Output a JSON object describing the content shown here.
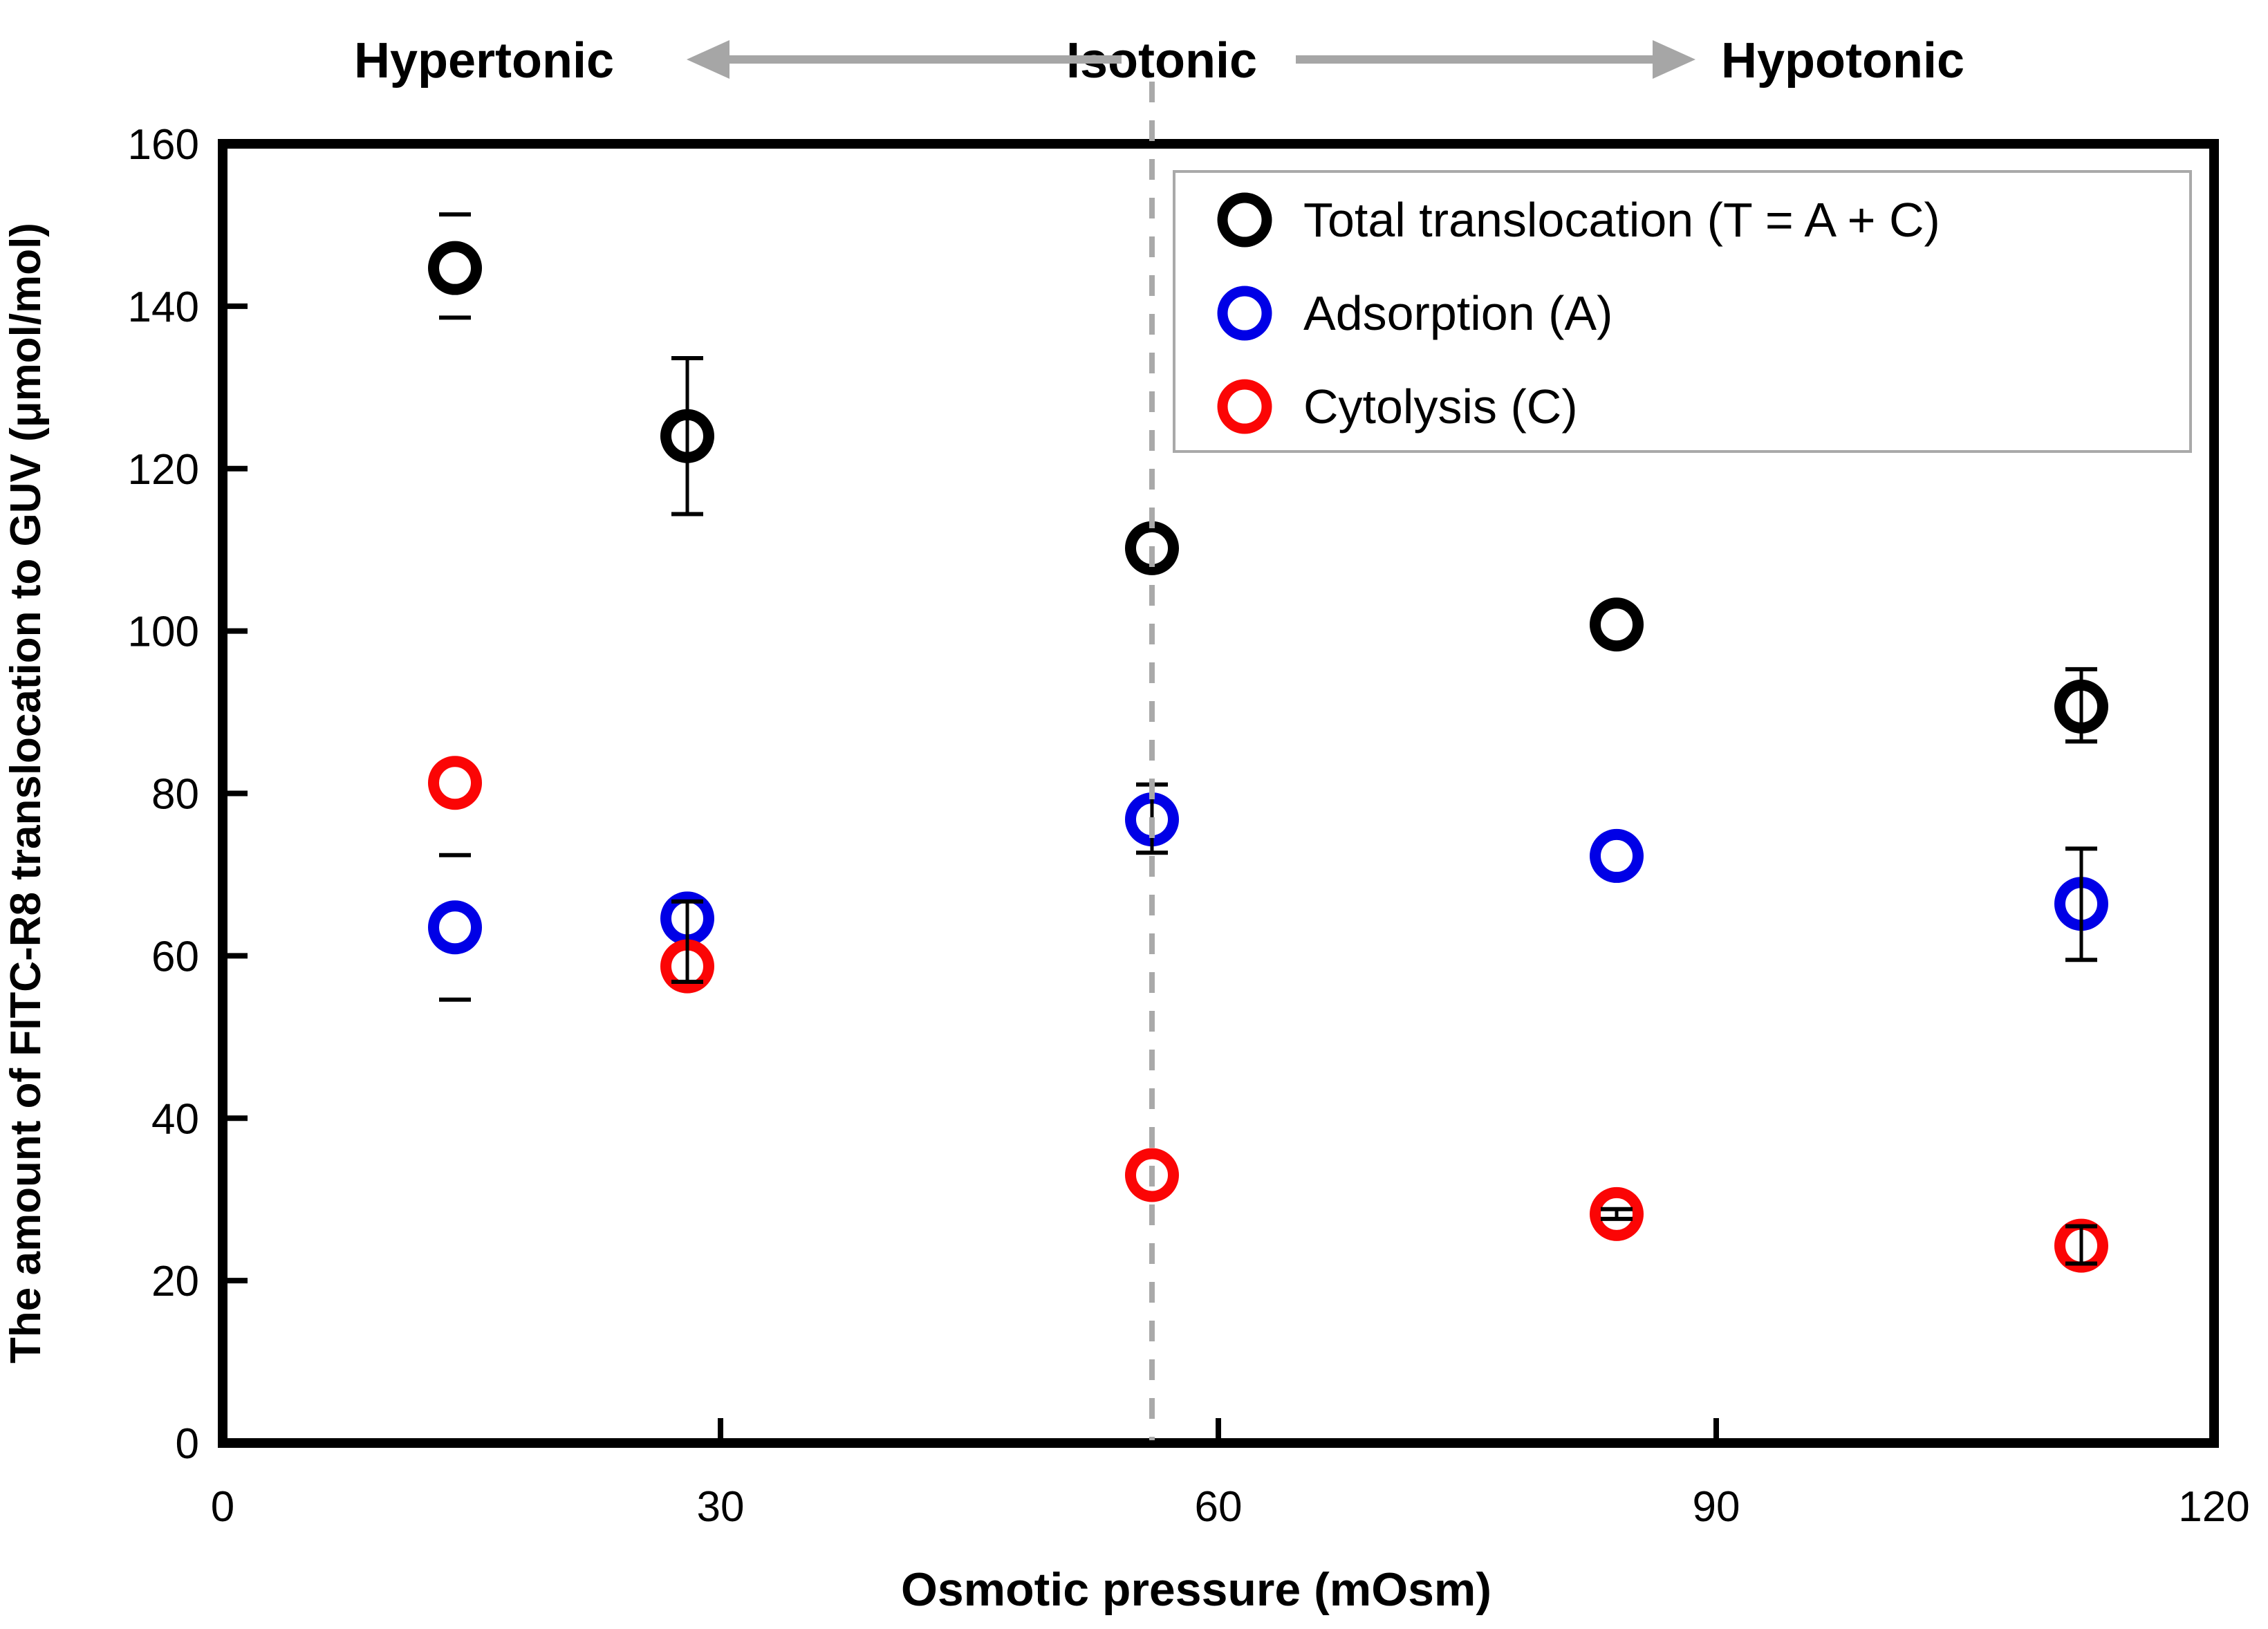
{
  "figure": {
    "top_labels": {
      "left": "Hypertonic",
      "center": "Isotonic",
      "right": "Hypotonic"
    },
    "axes": {
      "x": {
        "title": "Osmotic pressure (mOsm)",
        "min": 0,
        "max": 120,
        "ticks": [
          0,
          30,
          60,
          90,
          120
        ]
      },
      "y": {
        "title": "The amount of FITC-R8 translocation to GUV (μmol/mol)",
        "min": 0,
        "max": 160,
        "ticks": [
          0,
          20,
          40,
          60,
          80,
          100,
          120,
          140,
          160
        ]
      }
    },
    "dashed_line_x": 56,
    "colors": {
      "total": "#000000",
      "adsorption": "#0000e6",
      "cytolysis": "#fb0505",
      "gray": "#a6a6a6"
    },
    "legend": {
      "items": [
        {
          "label": "Total translocation (T = A + C)",
          "color": "#000000"
        },
        {
          "label": "Adsorption (A)",
          "color": "#0000e6"
        },
        {
          "label": "Cytolysis (C)",
          "color": "#fb0505"
        }
      ]
    }
  },
  "chart_data": {
    "type": "scatter",
    "title": "",
    "xlabel": "Osmotic pressure (mOsm)",
    "ylabel": "The amount of FITC-R8 translocation to GUV (μmol/mol)",
    "xlim": [
      0,
      120
    ],
    "ylim": [
      0,
      160
    ],
    "grid": false,
    "legend_position": "upper right",
    "annotations": [
      "Hypertonic",
      "Isotonic",
      "Hypotonic",
      "dashed vertical line at x = 56"
    ],
    "series": [
      {
        "name": "Total translocation (T = A + C)",
        "color": "#000000",
        "marker": "open-circle",
        "points": [
          {
            "x": 14,
            "y": 144.7,
            "err_up": 6.6,
            "err_down": 6.1,
            "whisker_line": false
          },
          {
            "x": 28,
            "y": 124.0,
            "err_up": 9.6,
            "err_down": 9.6,
            "whisker_line": true
          },
          {
            "x": 56,
            "y": 110.2,
            "err_up": 0,
            "err_down": 0,
            "whisker_line": false
          },
          {
            "x": 84,
            "y": 100.8,
            "err_up": 0,
            "err_down": 0,
            "whisker_line": false
          },
          {
            "x": 112,
            "y": 90.7,
            "err_up": 4.6,
            "err_down": 4.3,
            "whisker_line": true
          }
        ]
      },
      {
        "name": "Adsorption (A)",
        "color": "#0000e6",
        "marker": "open-circle",
        "points": [
          {
            "x": 14,
            "y": 63.5,
            "err_up": 8.9,
            "err_down": 8.9,
            "whisker_line": false
          },
          {
            "x": 28,
            "y": 64.6,
            "err_up": 2.1,
            "err_down": 7.8,
            "whisker_line": true
          },
          {
            "x": 56,
            "y": 76.8,
            "err_up": 4.3,
            "err_down": 4.1,
            "whisker_line": true
          },
          {
            "x": 84,
            "y": 72.3,
            "err_up": 0,
            "err_down": 0,
            "whisker_line": false
          },
          {
            "x": 112,
            "y": 66.4,
            "err_up": 6.8,
            "err_down": 6.9,
            "whisker_line": true
          }
        ]
      },
      {
        "name": "Cytolysis (C)",
        "color": "#fb0505",
        "marker": "open-circle",
        "points": [
          {
            "x": 14,
            "y": 81.3,
            "err_up": 0,
            "err_down": 0,
            "whisker_line": false
          },
          {
            "x": 28,
            "y": 58.7,
            "err_up": 0,
            "err_down": 0,
            "whisker_line": false
          },
          {
            "x": 56,
            "y": 33.0,
            "err_up": 0,
            "err_down": 0,
            "whisker_line": false
          },
          {
            "x": 84,
            "y": 28.2,
            "err_up": 0.6,
            "err_down": 0.6,
            "whisker_line": true
          },
          {
            "x": 112,
            "y": 24.3,
            "err_up": 2.4,
            "err_down": 2.2,
            "whisker_line": true
          }
        ]
      }
    ]
  }
}
